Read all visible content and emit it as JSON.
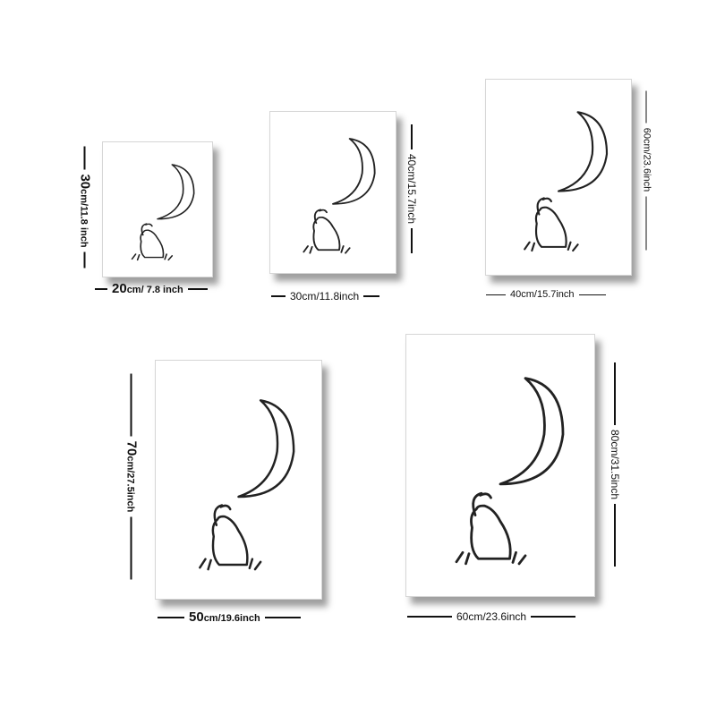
{
  "sizes": [
    {
      "id": "s1",
      "width_label_main": "20",
      "width_label_rest": "cm/ 7.8 inch",
      "height_label_main": "30",
      "height_label_rest": "cm/11.8 inch"
    },
    {
      "id": "s2",
      "width_label": "30cm/11.8inch",
      "height_label": "40cm/15.7inch"
    },
    {
      "id": "s3",
      "width_label": "40cm/15.7inch",
      "height_label": "60cm/23.6inch"
    },
    {
      "id": "s4",
      "width_label_main": "50",
      "width_label_rest": "cm/19.6inch",
      "height_label_main": "70",
      "height_label_rest": "cm/27.5inch"
    },
    {
      "id": "s5",
      "width_label": "60cm/23.6inch",
      "height_label": "80cm/31.5inch"
    }
  ],
  "artwork": {
    "subject": [
      "crescent-moon",
      "rabbit"
    ],
    "ink_color": "#222222",
    "paper_color": "#ffffff"
  }
}
